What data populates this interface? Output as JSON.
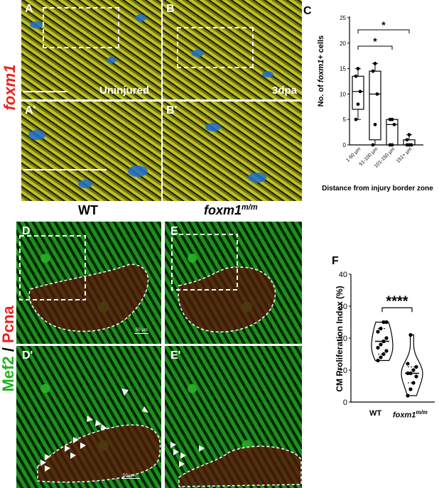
{
  "stain_top": "foxm1",
  "stain_bottom_a": "Mef2",
  "stain_bottom_sep": " / ",
  "stain_bottom_b": "Pcna",
  "panels": {
    "A": "A",
    "B": "B",
    "A2": "A'",
    "B2": "B'",
    "C": "C",
    "D": "D",
    "E": "E",
    "D2": "D'",
    "E2": "E'",
    "F": "F"
  },
  "condition_uninjured": "Uninjured",
  "condition_3dpa": "3dpa",
  "col_wt": "WT",
  "col_mut_base": "foxm1",
  "col_mut_sup": "m/m",
  "scale_50": "50 µm",
  "chart_c": {
    "type": "box",
    "ylabel_pre": "No. of ",
    "ylabel_ital": "foxm1",
    "ylabel_post": "+ cells",
    "xlabel": "Distance from injury border zone",
    "categories": [
      "1-50 µm",
      "51-100 µm",
      "101-150 µm",
      "151+ µm"
    ],
    "yticks": [
      "0",
      "5",
      "10",
      "15",
      "20",
      "25"
    ],
    "ylim": [
      0,
      25
    ],
    "sig1": "*",
    "sig2": "*"
  },
  "chart_f": {
    "type": "violin",
    "ylabel": "CM Proliferation Index (%)",
    "categories_wt": "WT",
    "categories_mut_base": "foxm1",
    "categories_mut_sup": "m/m",
    "yticks": [
      "0",
      "10",
      "20",
      "30",
      "40"
    ],
    "ylim": [
      0,
      40
    ],
    "sig": "****"
  },
  "chart_data": [
    {
      "type": "box",
      "categories": [
        "1-50 µm",
        "51-100 µm",
        "101-150 µm",
        "151+ µm"
      ],
      "ylim": [
        0,
        25
      ],
      "series": [
        {
          "box": {
            "min": 5,
            "q1": 7,
            "median": 10.5,
            "q3": 13.5,
            "max": 15
          },
          "points": [
            5,
            8,
            10.5,
            13.5,
            15
          ]
        },
        {
          "box": {
            "min": 0,
            "q1": 1,
            "median": 10,
            "q3": 14.5,
            "max": 16
          },
          "points": [
            0,
            4,
            10,
            14.5,
            16
          ]
        },
        {
          "box": {
            "min": 0,
            "q1": 0,
            "median": 4,
            "q3": 5,
            "max": 5
          },
          "points": [
            0,
            0,
            4,
            5,
            5
          ]
        },
        {
          "box": {
            "min": 0,
            "q1": 0,
            "median": 0,
            "q3": 1,
            "max": 2
          },
          "points": [
            0,
            0,
            0,
            1,
            2
          ]
        }
      ]
    },
    {
      "type": "violin",
      "categories": [
        "WT",
        "foxm1 m/m"
      ],
      "ylim": [
        0,
        40
      ],
      "series": [
        {
          "name": "WT",
          "median": 19,
          "q1": 15,
          "q3": 23,
          "points": [
            13,
            14,
            15,
            16,
            17,
            18,
            19,
            20,
            22,
            23,
            25,
            25
          ]
        },
        {
          "name": "foxm1 m/m",
          "median": 9,
          "q1": 6,
          "q3": 11,
          "points": [
            2,
            4,
            6,
            8,
            9,
            9,
            10,
            11,
            12,
            21
          ]
        }
      ]
    }
  ]
}
